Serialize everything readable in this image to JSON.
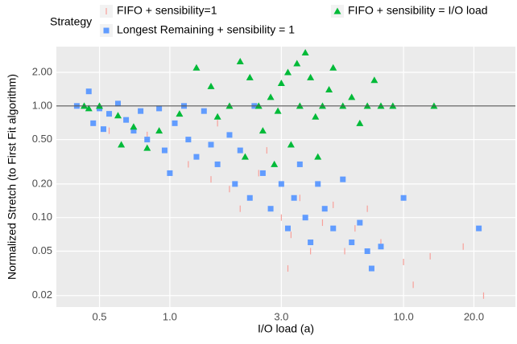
{
  "chart_data": {
    "type": "scatter",
    "x_label": "I/O load (a)",
    "y_label": "Normalized Stretch (to First Fit algorithm)",
    "legend_title": "Strategy",
    "log_x": true,
    "log_y": true,
    "grid": true,
    "hline": 1,
    "xlim": [
      0.327,
      30.1
    ],
    "ylim": [
      0.0158,
      3.4
    ],
    "xticks": [
      0.5,
      {
        "value": 1,
        "label": "1.0"
      },
      {
        "value": 3,
        "label": "3.0"
      },
      {
        "value": 10,
        "label": "10.0"
      },
      {
        "value": 20,
        "label": "20.0"
      }
    ],
    "yticks": [
      0.02,
      0.05,
      {
        "value": 0.1,
        "label": "0.10"
      },
      {
        "value": 0.2,
        "label": "0.20"
      },
      {
        "value": 0.5,
        "label": "0.50"
      },
      {
        "value": 1,
        "label": "1.00"
      },
      {
        "value": 2,
        "label": "2.00"
      }
    ],
    "series": [
      {
        "name": "FIFO + sensibility=1",
        "color": "#f8a09a",
        "shape": "tick",
        "x": [
          0.55,
          0.8,
          1.2,
          1.5,
          1.8,
          2.0,
          2.4,
          2.6,
          3.0,
          3.3,
          3.6,
          4.0,
          4.5,
          5.0,
          5.6,
          6.2,
          7.0,
          8.0,
          10.0,
          11.0,
          13.0,
          18.0,
          22.0,
          3.2,
          1.6
        ],
        "values": [
          0.6,
          0.55,
          0.3,
          0.22,
          0.18,
          0.12,
          0.25,
          0.4,
          0.1,
          0.07,
          0.15,
          0.05,
          0.09,
          0.13,
          0.05,
          0.08,
          0.12,
          0.06,
          0.04,
          0.025,
          0.045,
          0.055,
          0.02,
          0.035,
          0.7
        ]
      },
      {
        "name": "Longest Remaining + sensibility = 1",
        "color": "#619cff",
        "shape": "square",
        "x": [
          0.4,
          0.45,
          0.47,
          0.5,
          0.52,
          0.55,
          0.6,
          0.65,
          0.7,
          0.75,
          0.8,
          0.9,
          0.95,
          1.0,
          1.05,
          1.2,
          1.3,
          1.4,
          1.5,
          1.6,
          1.8,
          1.9,
          2.0,
          2.2,
          2.5,
          2.7,
          3.0,
          3.2,
          3.4,
          3.6,
          3.8,
          4.0,
          4.3,
          4.6,
          5.0,
          5.5,
          6.0,
          6.5,
          7.0,
          7.3,
          8.0,
          10.0,
          21.0,
          1.15,
          2.3
        ],
        "values": [
          1.0,
          1.35,
          0.7,
          0.95,
          0.62,
          0.85,
          1.05,
          0.75,
          0.6,
          0.9,
          0.5,
          0.95,
          0.4,
          0.25,
          0.7,
          0.5,
          0.35,
          0.9,
          0.45,
          0.3,
          0.55,
          0.2,
          0.4,
          0.15,
          0.25,
          0.12,
          0.2,
          0.08,
          0.15,
          0.3,
          0.1,
          0.06,
          0.2,
          0.12,
          0.08,
          0.22,
          0.06,
          0.09,
          0.05,
          0.035,
          0.055,
          0.15,
          0.08,
          1.0,
          1.0
        ]
      },
      {
        "name": "FIFO + sensibility = I/O load",
        "color": "#00ba38",
        "shape": "triangle",
        "x": [
          0.43,
          0.45,
          0.5,
          0.6,
          0.7,
          0.9,
          1.1,
          1.3,
          1.5,
          1.6,
          1.8,
          2.0,
          2.2,
          2.4,
          2.5,
          2.7,
          2.9,
          3.0,
          3.2,
          3.5,
          3.6,
          3.8,
          4.0,
          4.2,
          4.5,
          4.8,
          5.0,
          5.5,
          6.0,
          6.5,
          7.0,
          7.5,
          8.0,
          9.0,
          13.5,
          2.1,
          2.8,
          3.3,
          0.8,
          0.62,
          4.3
        ],
        "values": [
          1.0,
          0.95,
          1.0,
          0.82,
          0.65,
          0.6,
          0.85,
          2.2,
          1.5,
          0.8,
          1.0,
          2.5,
          1.8,
          1.0,
          0.6,
          1.2,
          0.9,
          1.6,
          2.0,
          2.4,
          1.0,
          3.0,
          1.8,
          0.8,
          1.0,
          1.4,
          2.2,
          1.0,
          1.2,
          0.7,
          1.0,
          1.7,
          1.0,
          1.0,
          1.0,
          0.35,
          0.3,
          0.45,
          0.42,
          0.45,
          0.35
        ]
      }
    ]
  }
}
